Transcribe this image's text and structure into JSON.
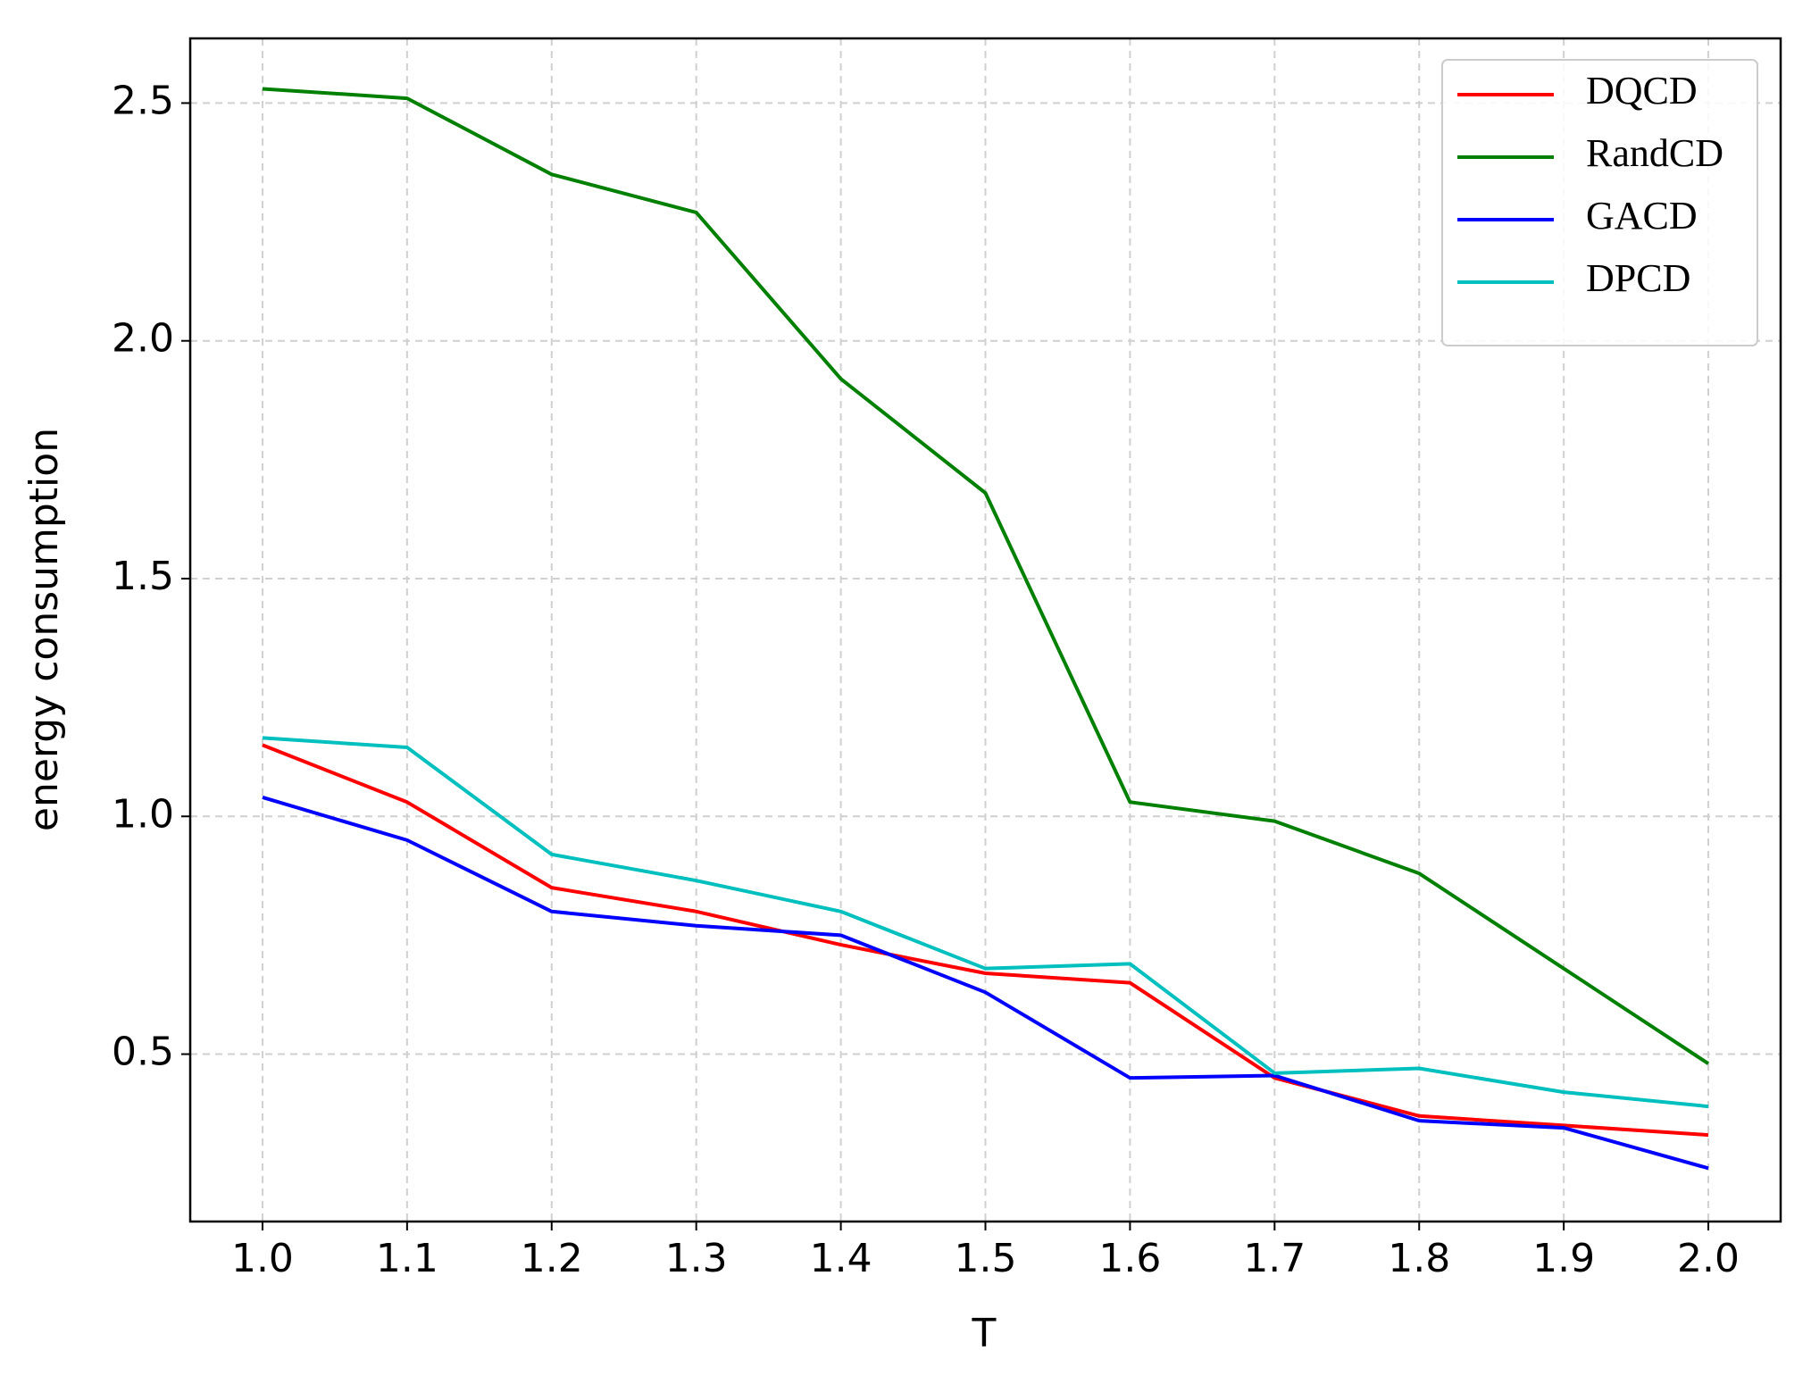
{
  "chart_data": {
    "type": "line",
    "x": [
      1.0,
      1.1,
      1.2,
      1.3,
      1.4,
      1.5,
      1.6,
      1.7,
      1.8,
      1.9,
      2.0
    ],
    "x_label": "T",
    "y_label": "energy consumption",
    "xlim": [
      0.95,
      2.05
    ],
    "ylim": [
      0.148,
      2.636
    ],
    "xticks": [
      {
        "value": 1.0,
        "label": "1.0"
      },
      {
        "value": 1.1,
        "label": "1.1"
      },
      {
        "value": 1.2,
        "label": "1.2"
      },
      {
        "value": 1.3,
        "label": "1.3"
      },
      {
        "value": 1.4,
        "label": "1.4"
      },
      {
        "value": 1.5,
        "label": "1.5"
      },
      {
        "value": 1.6,
        "label": "1.6"
      },
      {
        "value": 1.7,
        "label": "1.7"
      },
      {
        "value": 1.8,
        "label": "1.8"
      },
      {
        "value": 1.9,
        "label": "1.9"
      },
      {
        "value": 2.0,
        "label": "2.0"
      }
    ],
    "yticks": [
      0.5,
      {
        "value": 1.0,
        "label": "1.0"
      },
      1.5,
      {
        "value": 2.0,
        "label": "2.0"
      },
      2.5
    ],
    "grid": true,
    "legend": "upper right",
    "series": [
      {
        "name": "DQCD",
        "color": "#ff0000",
        "values": [
          1.15,
          1.03,
          0.85,
          0.8,
          0.73,
          0.67,
          0.65,
          0.45,
          0.37,
          0.35,
          0.33
        ]
      },
      {
        "name": "RandCD",
        "color": "#008000",
        "values": [
          2.53,
          2.51,
          2.35,
          2.27,
          1.92,
          1.68,
          1.03,
          0.99,
          0.88,
          0.68,
          0.48
        ]
      },
      {
        "name": "GACD",
        "color": "#0000ff",
        "values": [
          1.04,
          0.95,
          0.8,
          0.77,
          0.75,
          0.63,
          0.45,
          0.455,
          0.36,
          0.345,
          0.26
        ]
      },
      {
        "name": "DPCD",
        "color": "#00bfbf",
        "values": [
          1.165,
          1.145,
          0.92,
          0.865,
          0.8,
          0.68,
          0.69,
          0.46,
          0.47,
          0.42,
          0.39
        ]
      }
    ]
  }
}
